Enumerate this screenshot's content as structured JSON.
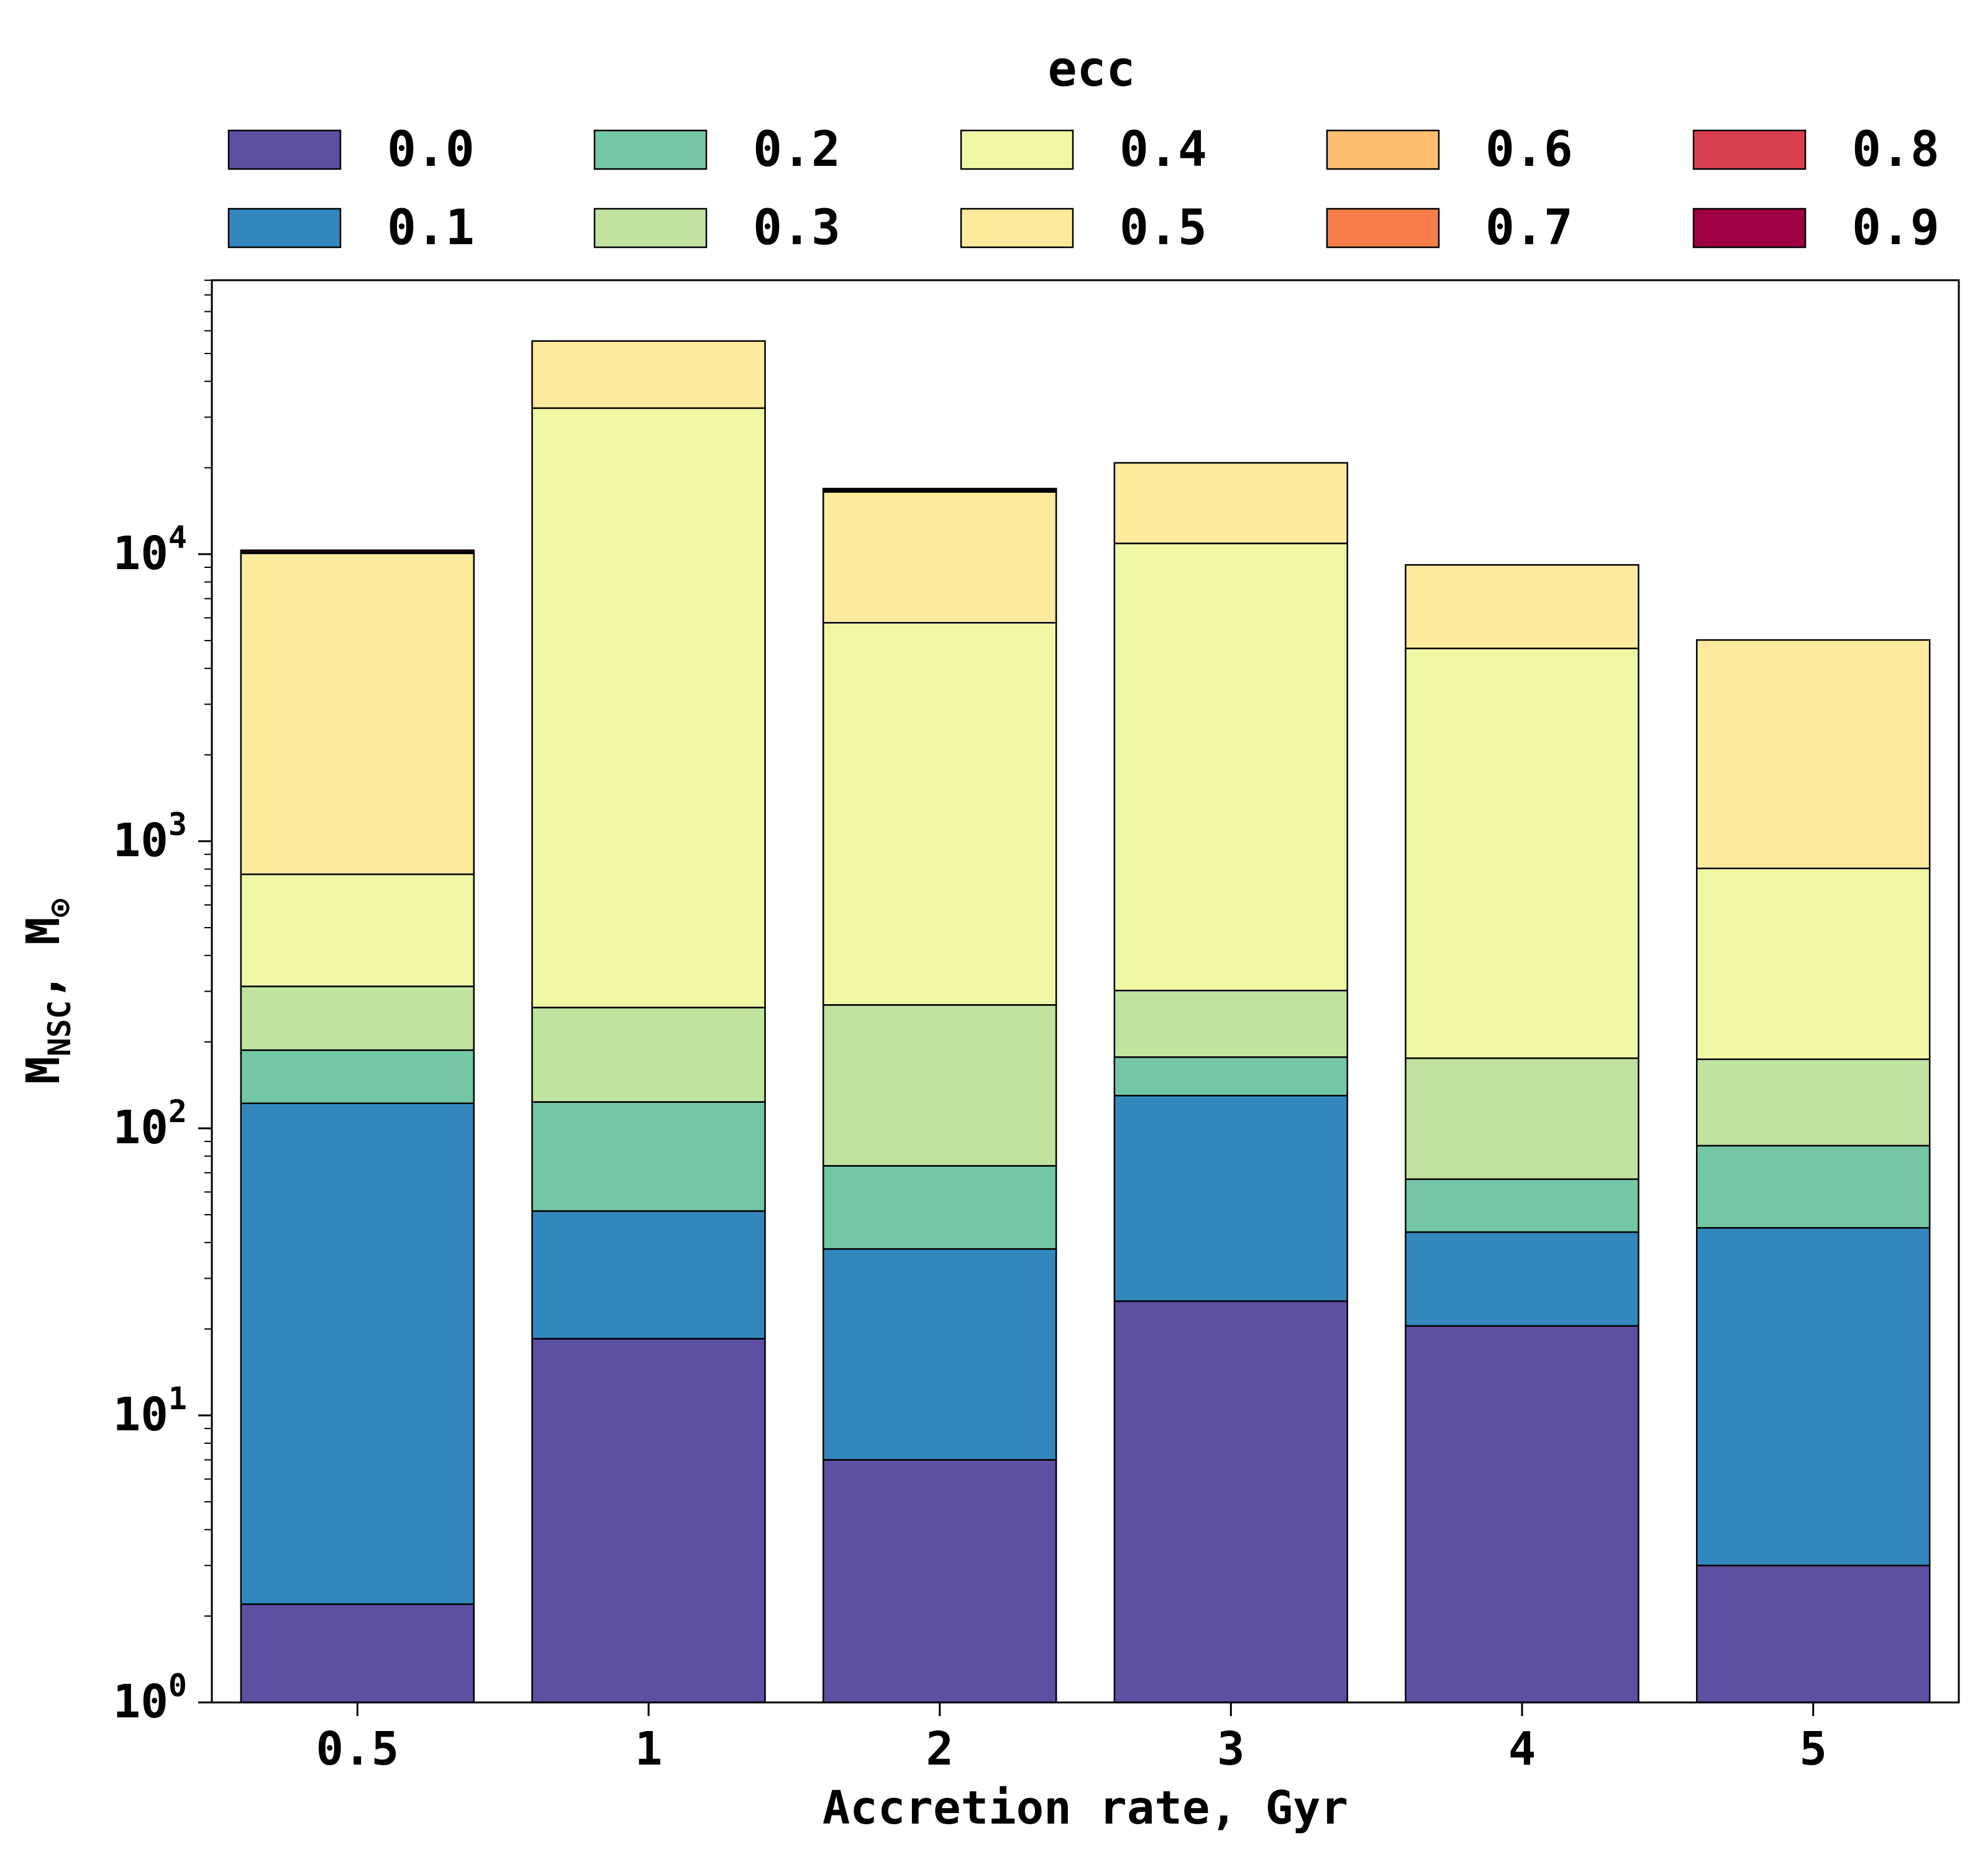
{
  "chart_data": {
    "type": "bar",
    "stacked": true,
    "xlabel": "Accretion rate, Gyr",
    "ylabel": {
      "main": "M",
      "sub": "NSC",
      "sep": ", ",
      "unit": "M",
      "unit_sub": "⊙"
    },
    "categories": [
      "0.5",
      "1",
      "2",
      "3",
      "4",
      "5"
    ],
    "yscale": "log",
    "ylim": [
      1,
      90000
    ],
    "yticks": [
      {
        "value": 1,
        "base": "10",
        "exp": "0"
      },
      {
        "value": 10,
        "base": "10",
        "exp": "1"
      },
      {
        "value": 100,
        "base": "10",
        "exp": "2"
      },
      {
        "value": 1000,
        "base": "10",
        "exp": "3"
      },
      {
        "value": 10000,
        "base": "10",
        "exp": "4"
      }
    ],
    "grid": false,
    "legend": {
      "title": "ecc",
      "placement": "top",
      "columns": 5
    },
    "series": [
      {
        "name": "0.0",
        "color": "#5e4fa2",
        "values": [
          2.2,
          18.5,
          7.0,
          25.0,
          20.5,
          3.0
        ]
      },
      {
        "name": "0.1",
        "color": "#3288bd",
        "values": [
          120,
          33,
          31,
          105,
          23,
          42
        ]
      },
      {
        "name": "0.2",
        "color": "#74c7a5",
        "values": [
          65,
          72,
          36,
          47,
          23,
          42
        ]
      },
      {
        "name": "0.3",
        "color": "#c0e3a0",
        "values": [
          125,
          140,
          195,
          125,
          109,
          87
        ]
      },
      {
        "name": "0.4",
        "color": "#f0f8a6",
        "values": [
          455,
          32000,
          5500,
          10600,
          4520,
          630
        ]
      },
      {
        "name": "0.5",
        "color": "#feeb9e",
        "values": [
          9300,
          23000,
          10700,
          9900,
          4480,
          4220
        ]
      },
      {
        "name": "0.6",
        "color": "#fdbf6f",
        "values": [
          40,
          0,
          100,
          0,
          0,
          0
        ]
      },
      {
        "name": "0.7",
        "color": "#f67e4b",
        "values": [
          30,
          0,
          80,
          0,
          0,
          0
        ]
      },
      {
        "name": "0.8",
        "color": "#d8404e",
        "values": [
          30,
          0,
          70,
          0,
          0,
          0
        ]
      },
      {
        "name": "0.9",
        "color": "#9e0142",
        "values": [
          150,
          0,
          200,
          0,
          0,
          0
        ]
      }
    ]
  }
}
